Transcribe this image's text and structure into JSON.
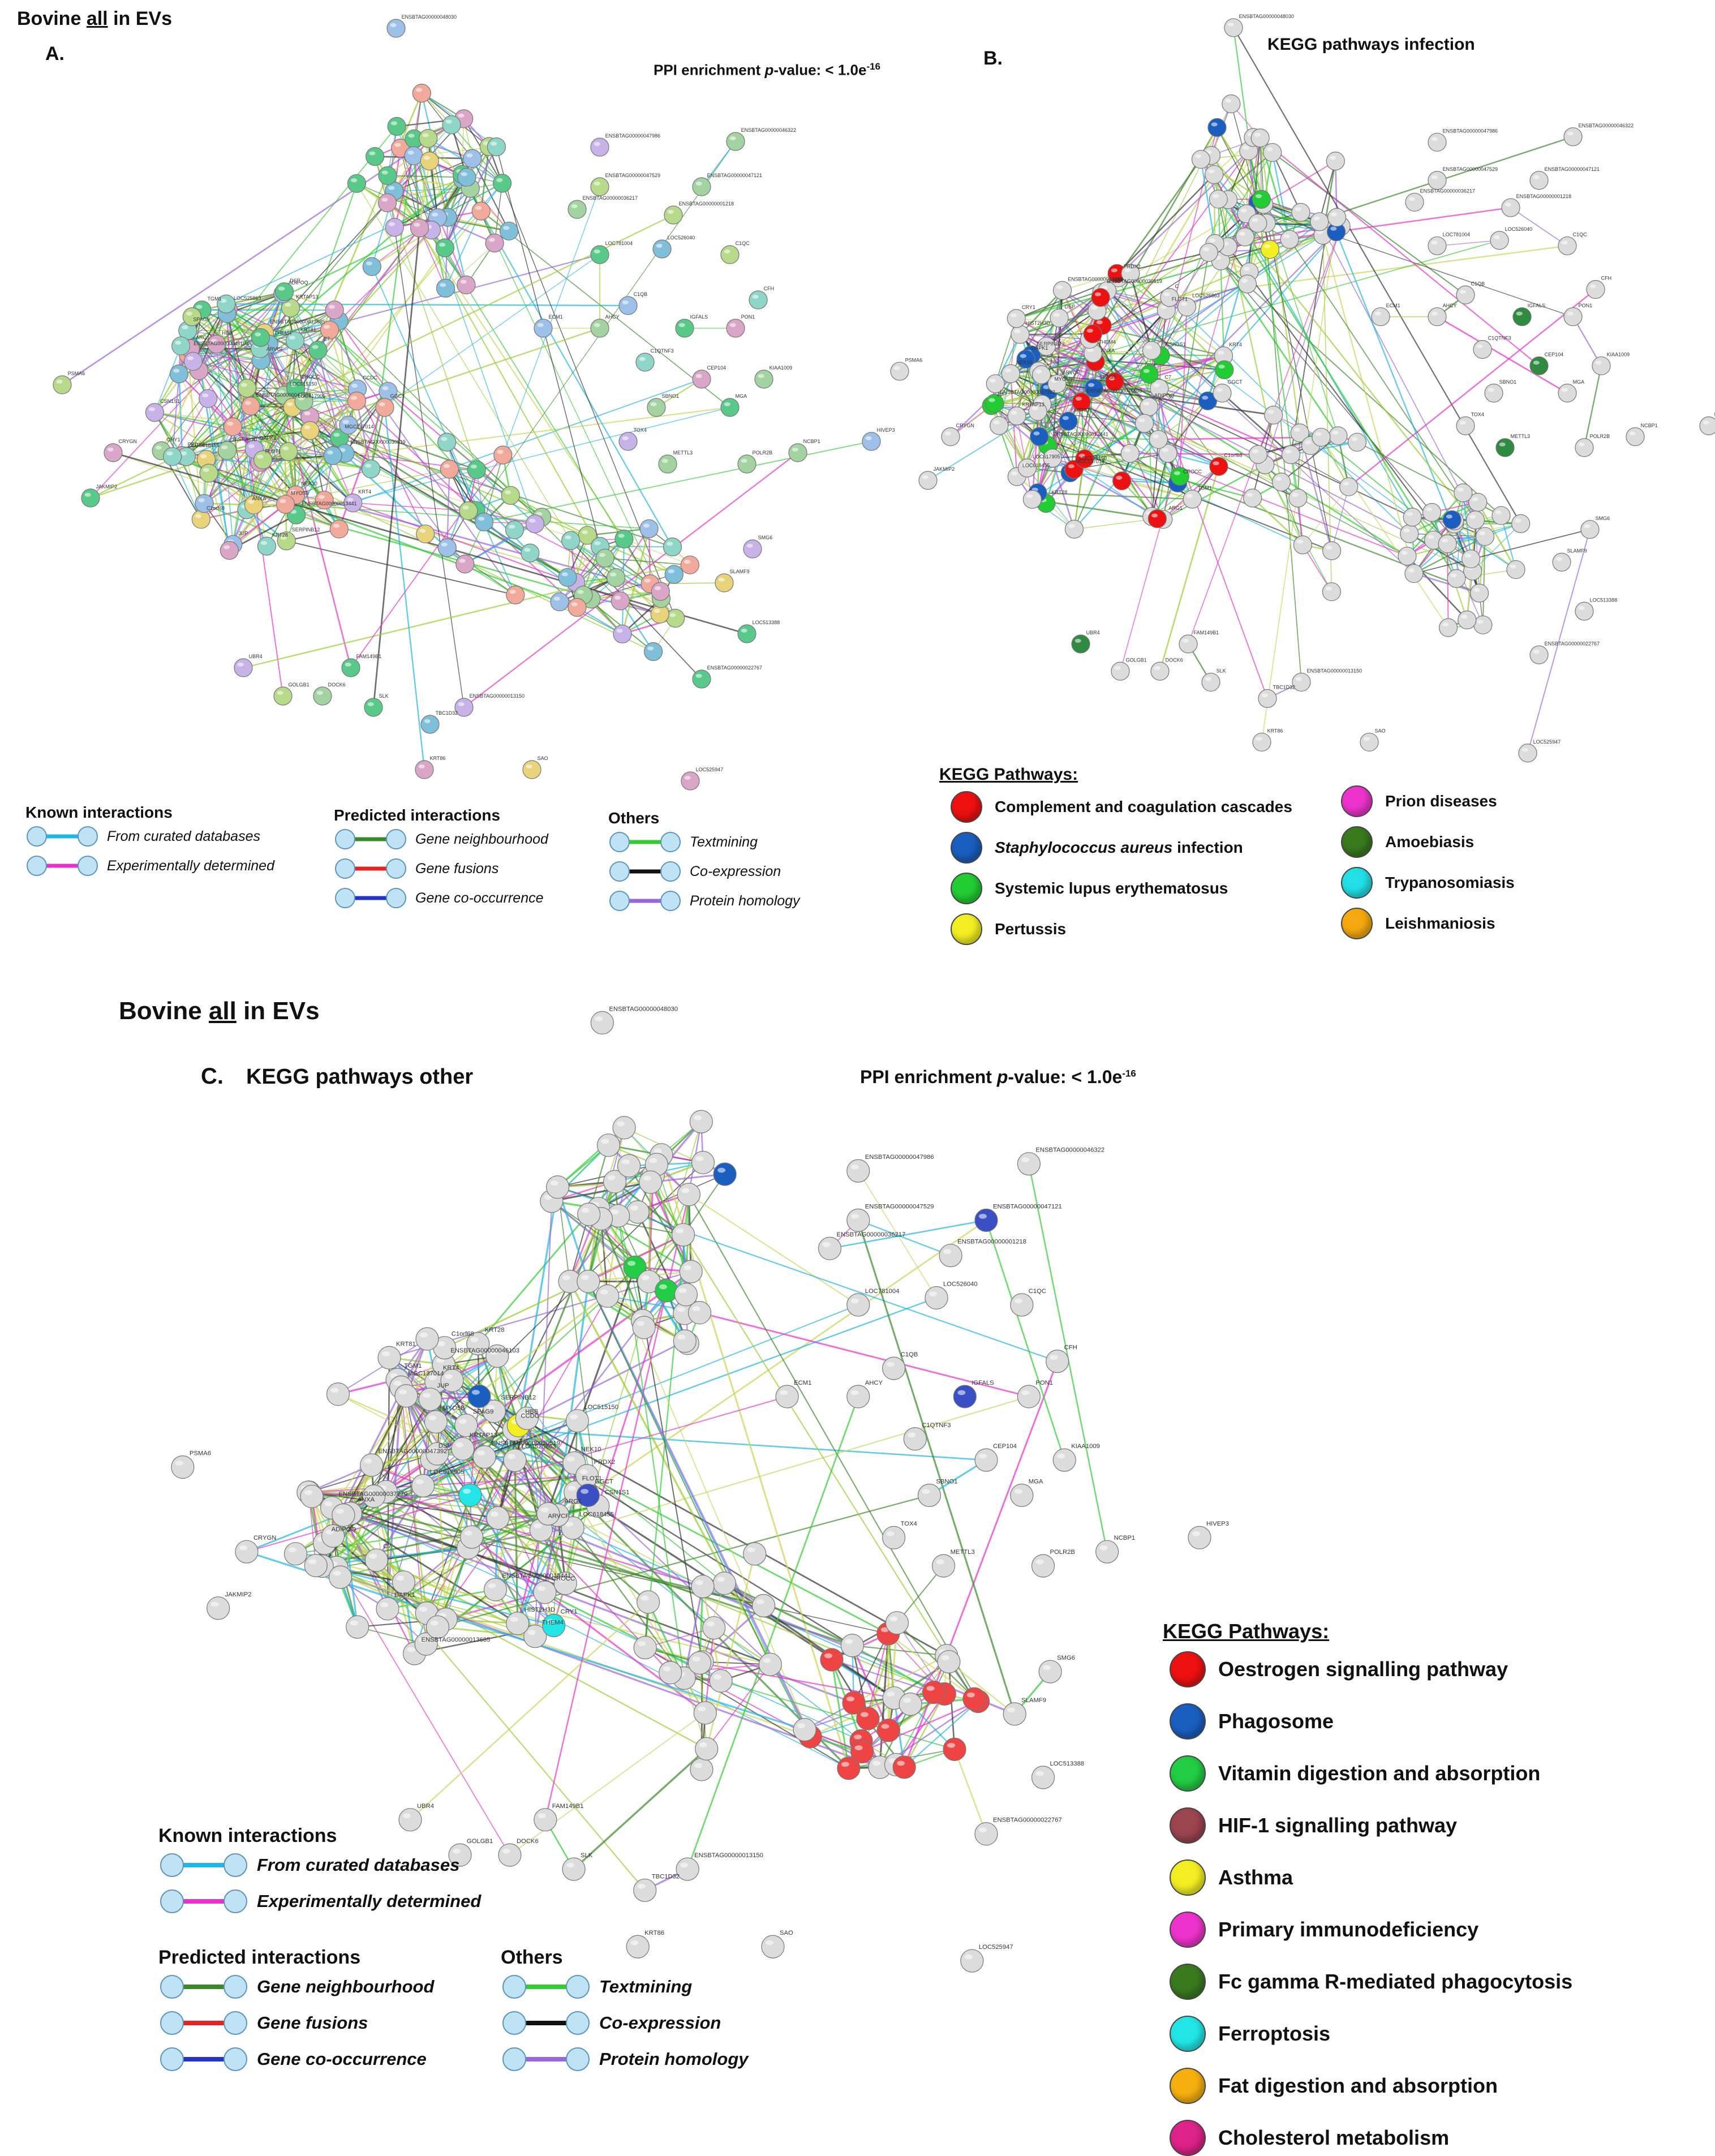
{
  "panel_top": {
    "title_pre": "Bovine ",
    "title_u": "all",
    "title_post": " in EVs"
  },
  "panel_a": {
    "letter": "A.",
    "ppi_label": "PPI enrichment ",
    "ppi_italic": "p",
    "ppi_value": "-value: < 1.0e",
    "ppi_exp": "-16"
  },
  "panel_b": {
    "letter": "B.",
    "subtitle": "KEGG pathways infection",
    "kegg_title": "KEGG Pathways:",
    "pathways_left": [
      {
        "label": "Complement and coagulation cascades",
        "color": "#ee1111",
        "italic": ""
      },
      {
        "label": "infection",
        "italic": "Staphylococcus aureus",
        "color": "#1a5fbf"
      },
      {
        "label": "Systemic lupus erythematosus",
        "color": "#22cc33",
        "italic": ""
      },
      {
        "label": "Pertussis",
        "color": "#f2ee22",
        "italic": ""
      }
    ],
    "pathways_right": [
      {
        "label": "Prion diseases",
        "color": "#ee33cc"
      },
      {
        "label": "Amoebiasis",
        "color": "#3a7a1f"
      },
      {
        "label": "Trypanosomiasis",
        "color": "#22e0e6"
      },
      {
        "label": "Leishmaniosis",
        "color": "#f5a90f"
      }
    ]
  },
  "panel_c": {
    "title_pre": "Bovine ",
    "title_u": "all",
    "title_post": " in EVs",
    "letter": "C.",
    "subtitle": "KEGG pathways other",
    "ppi_label": "PPI enrichment ",
    "ppi_italic": "p",
    "ppi_value": "-value: < 1.0e",
    "ppi_exp": "-16",
    "kegg_title": "KEGG Pathways:",
    "pathways": [
      {
        "label": "Oestrogen signalling pathway",
        "color": "#ee1111"
      },
      {
        "label": "Phagosome",
        "color": "#1a5fbf"
      },
      {
        "label": "Vitamin digestion and absorption",
        "color": "#22cc44"
      },
      {
        "label": "HIF-1 signalling pathway",
        "color": "#9c4450"
      },
      {
        "label": "Asthma",
        "color": "#f2ee22"
      },
      {
        "label": "Primary immunodeficiency",
        "color": "#ee33cc"
      },
      {
        "label": "Fc gamma R-mediated phagocytosis",
        "color": "#3a7a1f"
      },
      {
        "label": "Ferroptosis",
        "color": "#22e6e6"
      },
      {
        "label": "Fat digestion and absorption",
        "color": "#f5b00f"
      },
      {
        "label": "Cholesterol metabolism",
        "color": "#dd2288"
      }
    ]
  },
  "legend": {
    "known_head": "Known interactions",
    "known": [
      {
        "label": "From curated databases",
        "color": "#22b5e6"
      },
      {
        "label": "Experimentally determined",
        "color": "#e632cc"
      }
    ],
    "predicted_head": "Predicted interactions",
    "predicted": [
      {
        "label": "Gene neighbourhood",
        "color": "#3a8a2a"
      },
      {
        "label": "Gene fusions",
        "color": "#e62222"
      },
      {
        "label": "Gene co-occurrence",
        "color": "#2233cc"
      }
    ],
    "others_head": "Others",
    "others": [
      {
        "label": "Textmining",
        "color": "#33cc33"
      },
      {
        "label": "Co-expression",
        "color": "#111111"
      },
      {
        "label": "Protein homology",
        "color": "#9966dd"
      }
    ]
  },
  "node_labels": {
    "a": [
      "ENSBTAG00000048030",
      "ENSBTAG00000047986",
      "ENSBTAG00000046322",
      "ENSBTAG00000047529",
      "ENSBTAG00000047121",
      "ENSBTAG00000036217",
      "ENSBTAG00000001218",
      "LOC526040",
      "LOC781004",
      "C1QC",
      "C1QB",
      "CFH",
      "IGFALS",
      "PON1",
      "C1QTNF3",
      "CEP104",
      "KIAA1009",
      "SBNO1",
      "MGA",
      "TOX4",
      "METTL3",
      "POLR2B",
      "NCBP1",
      "HIVEP3",
      "SMG6",
      "SLAMF9",
      "LOC513388",
      "ENSBTAG00000022767",
      "PSMA6",
      "CRYGN",
      "JAKMIP2",
      "UBR4",
      "GOLGB1",
      "DOCK6",
      "FAM149B1",
      "SLK",
      "TBC1D32",
      "ENSBTAG00000013150",
      "KRT86",
      "SAO",
      "LOC525947",
      "GGCT",
      "ECM1",
      "AHCY",
      "TGM1",
      "FLOT1",
      "SERPINB12",
      "NEK10",
      "KRT81",
      "SPAG9",
      "CCDC",
      "ANXA",
      "PRDX2",
      "KRT28",
      "KRT4",
      "MGC137014",
      "LOC618455",
      "ENSBTAG00000046103",
      "ENSBTAG00000013685",
      "LOC515150",
      "ENSBTAG00000030519",
      "CROCC",
      "KRTAP13",
      "C7",
      "ADIPOQ",
      "ARG1",
      "JUP",
      "DSP",
      "HBB",
      "THEM4",
      "ENSBTAG00000013441",
      "MYO5B",
      "CSN1S1",
      "HIST2H3D",
      "LOC525863",
      "LOC617905",
      "ARVCF",
      "C1orf68",
      "DAPK1",
      "CRY1",
      "ENSBTAG00000047392"
    ],
    "b": [
      "ENSBTAG00000048030",
      "ENSBTAG00000047986",
      "ENSBTAG00000046322",
      "ENSBTAG00000047529",
      "ENSBTAG00000047121",
      "ENSBTAG00000036217",
      "ENSBTAG00000001218",
      "LOC526040",
      "LOC781004",
      "C1QC",
      "C1QB",
      "CFH",
      "IGFALS",
      "PON1",
      "C1QTNF3",
      "CEP104",
      "KIAA1009",
      "SBNO1",
      "MGA",
      "TOX4",
      "METTL3",
      "POLR2B",
      "NCBP1",
      "HIVEP3",
      "SMG6",
      "SLAMF9",
      "LOC513388",
      "ENSBTAG00000022767",
      "PSMA6",
      "CRYGN",
      "JAKMIP2",
      "UBR4",
      "GOLGB1",
      "DOCK6",
      "FAM149B1",
      "SLK",
      "TBC1D32",
      "ENSBTAG00000013150",
      "KRT86",
      "SAO",
      "LOC525947",
      "GGCT",
      "ECM1",
      "AHCY",
      "TGM1",
      "FLOT1",
      "SERPINB12",
      "NEK10",
      "KRT81",
      "SPAG9",
      "C",
      "ANXA",
      "PRDX2",
      "KRT28",
      "KRT4",
      "MGC137014",
      "LOC618455",
      "ENSBTAG00000046103",
      "ENSBTAG00000013685",
      "LOC515150",
      "ENSBTAG00000030519",
      "CROCC",
      "KRTAP13",
      "C7",
      "ADIPOQ",
      "ARG1",
      "JUP",
      "DSP",
      "HBB",
      "THEM4",
      "ENSBTAG00000013441",
      "MYO5B",
      "CSN1S1",
      "HIST2H3D",
      "LOC525863",
      "LOC617905",
      "ARVCF",
      "C1orf68",
      "DAPK1",
      "CRY1",
      "ENSBTAG00000047392"
    ],
    "c": [
      "ENSBTAG00000048030",
      "ENSBTAG00000047986",
      "ENSBTAG00000046322",
      "ENSBTAG00000047529",
      "ENSBTAG00000047121",
      "ENSBTAG00000036217",
      "ENSBTAG00000001218",
      "LOC526040",
      "LOC781004",
      "C1QC",
      "C1QB",
      "CFH",
      "IGFALS",
      "PON1",
      "C1QTNF3",
      "CEP104",
      "KIAA1009",
      "SBNO1",
      "MGA",
      "TOX4",
      "METTL3",
      "POLR2B",
      "NCBP1",
      "HIVEP3",
      "SMG6",
      "SLAMF9",
      "LOC513388",
      "ENSBTAG00000022767",
      "PSMA6",
      "CRYGN",
      "JAKMIP2",
      "UBR4",
      "GOLGB1",
      "DOCK6",
      "FAM149B1",
      "SLK",
      "TBC1D32",
      "ENSBTAG00000013150",
      "KRT86",
      "SAO",
      "LOC525947",
      "GGCT",
      "ECM1",
      "AHCY",
      "TGM1",
      "FLOT1",
      "SERPINB12",
      "NEK10",
      "KRT81",
      "SPAG9",
      "CCDC",
      "ANXA",
      "PRDX2",
      "KRT28",
      "KRT4",
      "MGC137014",
      "LOC618455",
      "ENSBTAG00000046103",
      "ENSBTAG00000013685",
      "LOC515150",
      "ENSBTAG00000030519",
      "CROCC",
      "KRTAP13",
      "C7",
      "ADIPOQ",
      "ARG1",
      "JUP",
      "DSP",
      "HBB",
      "THEM4",
      "ENSBTAG00000013441",
      "MYO5B",
      "CSN1S1",
      "HIST2H3D",
      "LOC525863",
      "LOC617905",
      "ARVCF",
      "C1orf68",
      "DAPK1",
      "CRY1",
      "ENSBTAG00000047392",
      "ENSBTAG00000037779"
    ]
  }
}
